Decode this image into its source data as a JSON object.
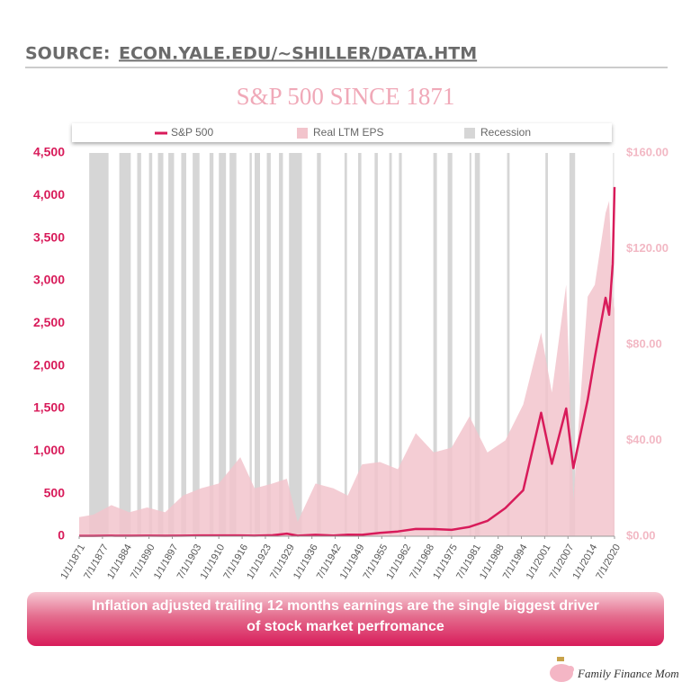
{
  "source": {
    "label": "SOURCE:",
    "url": "ECON.YALE.EDU/~SHILLER/DATA.HTM"
  },
  "chart_data": {
    "type": "line",
    "title": "S&P 500 SINCE 1871",
    "legend": "top",
    "x": [
      1871,
      1875,
      1880,
      1885,
      1890,
      1895,
      1900,
      1905,
      1910,
      1916,
      1920,
      1925,
      1929,
      1932,
      1937,
      1942,
      1946,
      1950,
      1955,
      1960,
      1965,
      1970,
      1975,
      1980,
      1985,
      1990,
      1995,
      2000,
      2003,
      2007,
      2009,
      2013,
      2015,
      2018,
      2019,
      2020,
      2020.5
    ],
    "xlim": [
      1871,
      2020.5
    ],
    "xticks": [
      {
        "value": 1871,
        "label": "1/1/1871"
      },
      {
        "value": 1877.5,
        "label": "7/1/1877"
      },
      {
        "value": 1884,
        "label": "1/1/1884"
      },
      {
        "value": 1890.5,
        "label": "7/1/1890"
      },
      {
        "value": 1897,
        "label": "1/1/1897"
      },
      {
        "value": 1903.5,
        "label": "7/1/1903"
      },
      {
        "value": 1910,
        "label": "1/1/1910"
      },
      {
        "value": 1916.5,
        "label": "7/1/1916"
      },
      {
        "value": 1923,
        "label": "1/1/1923"
      },
      {
        "value": 1929.5,
        "label": "7/1/1929"
      },
      {
        "value": 1936,
        "label": "1/1/1936"
      },
      {
        "value": 1942.5,
        "label": "7/1/1942"
      },
      {
        "value": 1949,
        "label": "1/1/1949"
      },
      {
        "value": 1955.5,
        "label": "7/1/1955"
      },
      {
        "value": 1962,
        "label": "1/1/1962"
      },
      {
        "value": 1968.5,
        "label": "7/1/1968"
      },
      {
        "value": 1975,
        "label": "1/1/1975"
      },
      {
        "value": 1981.5,
        "label": "7/1/1981"
      },
      {
        "value": 1988,
        "label": "1/1/1988"
      },
      {
        "value": 1994.5,
        "label": "7/1/1994"
      },
      {
        "value": 2001,
        "label": "1/1/2001"
      },
      {
        "value": 2007.5,
        "label": "7/1/2007"
      },
      {
        "value": 2014,
        "label": "1/1/2014"
      },
      {
        "value": 2020.5,
        "label": "7/1/2020"
      }
    ],
    "ylim": [
      0,
      4500
    ],
    "yticks": [
      0,
      500,
      {
        "value": 1000,
        "label": "1,000"
      },
      {
        "value": 1500,
        "label": "1,500"
      },
      {
        "value": 2000,
        "label": "2,000"
      },
      {
        "value": 2500,
        "label": "2,500"
      },
      {
        "value": 3000,
        "label": "3,000"
      },
      {
        "value": 3500,
        "label": "3,500"
      },
      {
        "value": 4000,
        "label": "4,000"
      },
      {
        "value": 4500,
        "label": "4,500"
      }
    ],
    "y2lim": [
      0,
      160
    ],
    "y2ticks": [
      {
        "value": 0,
        "label": "$0.00"
      },
      {
        "value": 40,
        "label": "$40.00"
      },
      {
        "value": 80,
        "label": "$80.00"
      },
      {
        "value": 120,
        "label": "$120.00"
      },
      {
        "value": 160,
        "label": "$160.00"
      }
    ],
    "series": [
      {
        "name": "S&P 500",
        "color": "#d81b5a",
        "values": [
          4.4,
          4.5,
          6,
          5,
          6,
          5,
          6,
          9,
          9,
          9,
          7,
          12,
          30,
          7,
          17,
          8,
          18,
          17,
          40,
          56,
          86,
          85,
          75,
          110,
          180,
          330,
          540,
          1450,
          850,
          1500,
          800,
          1600,
          2100,
          2800,
          2600,
          3200,
          4100
        ]
      },
      {
        "name": "Real LTM EPS",
        "color": "#f2c4cc",
        "mark": "area",
        "axis": "y2",
        "values": [
          8,
          9,
          13,
          10,
          12,
          10,
          17,
          20,
          22,
          33,
          20,
          22,
          24,
          6,
          22,
          20,
          17,
          30,
          31,
          28,
          43,
          35,
          37,
          50,
          35,
          40,
          55,
          85,
          60,
          105,
          15,
          100,
          105,
          135,
          140,
          100,
          95
        ]
      }
    ],
    "recessions": {
      "name": "Recession",
      "color": "#d6d6d6",
      "periods": [
        [
          1873.8,
          1879.2
        ],
        [
          1882.2,
          1885.4
        ],
        [
          1887.2,
          1888.3
        ],
        [
          1890.5,
          1891.4
        ],
        [
          1893.0,
          1894.5
        ],
        [
          1895.9,
          1897.5
        ],
        [
          1899.5,
          1900.9
        ],
        [
          1902.7,
          1904.6
        ],
        [
          1907.4,
          1908.5
        ],
        [
          1910.0,
          1912.0
        ],
        [
          1913.0,
          1914.9
        ],
        [
          1918.6,
          1919.2
        ],
        [
          1920.0,
          1921.5
        ],
        [
          1923.4,
          1924.5
        ],
        [
          1926.8,
          1927.9
        ],
        [
          1929.6,
          1933.2
        ],
        [
          1937.4,
          1938.5
        ],
        [
          1945.1,
          1945.8
        ],
        [
          1948.9,
          1949.8
        ],
        [
          1953.5,
          1954.4
        ],
        [
          1957.6,
          1958.3
        ],
        [
          1960.3,
          1961.1
        ],
        [
          1969.9,
          1970.9
        ],
        [
          1973.9,
          1975.2
        ],
        [
          1980.0,
          1980.5
        ],
        [
          1981.5,
          1982.9
        ],
        [
          1990.5,
          1991.2
        ],
        [
          2001.2,
          2001.9
        ],
        [
          2007.9,
          2009.5
        ],
        [
          2020.1,
          2020.3
        ]
      ]
    }
  },
  "banner": [
    "Inflation adjusted trailing 12 months earnings are the single biggest driver",
    "of stock market perfromance"
  ],
  "brand": "Family Finance Mom"
}
